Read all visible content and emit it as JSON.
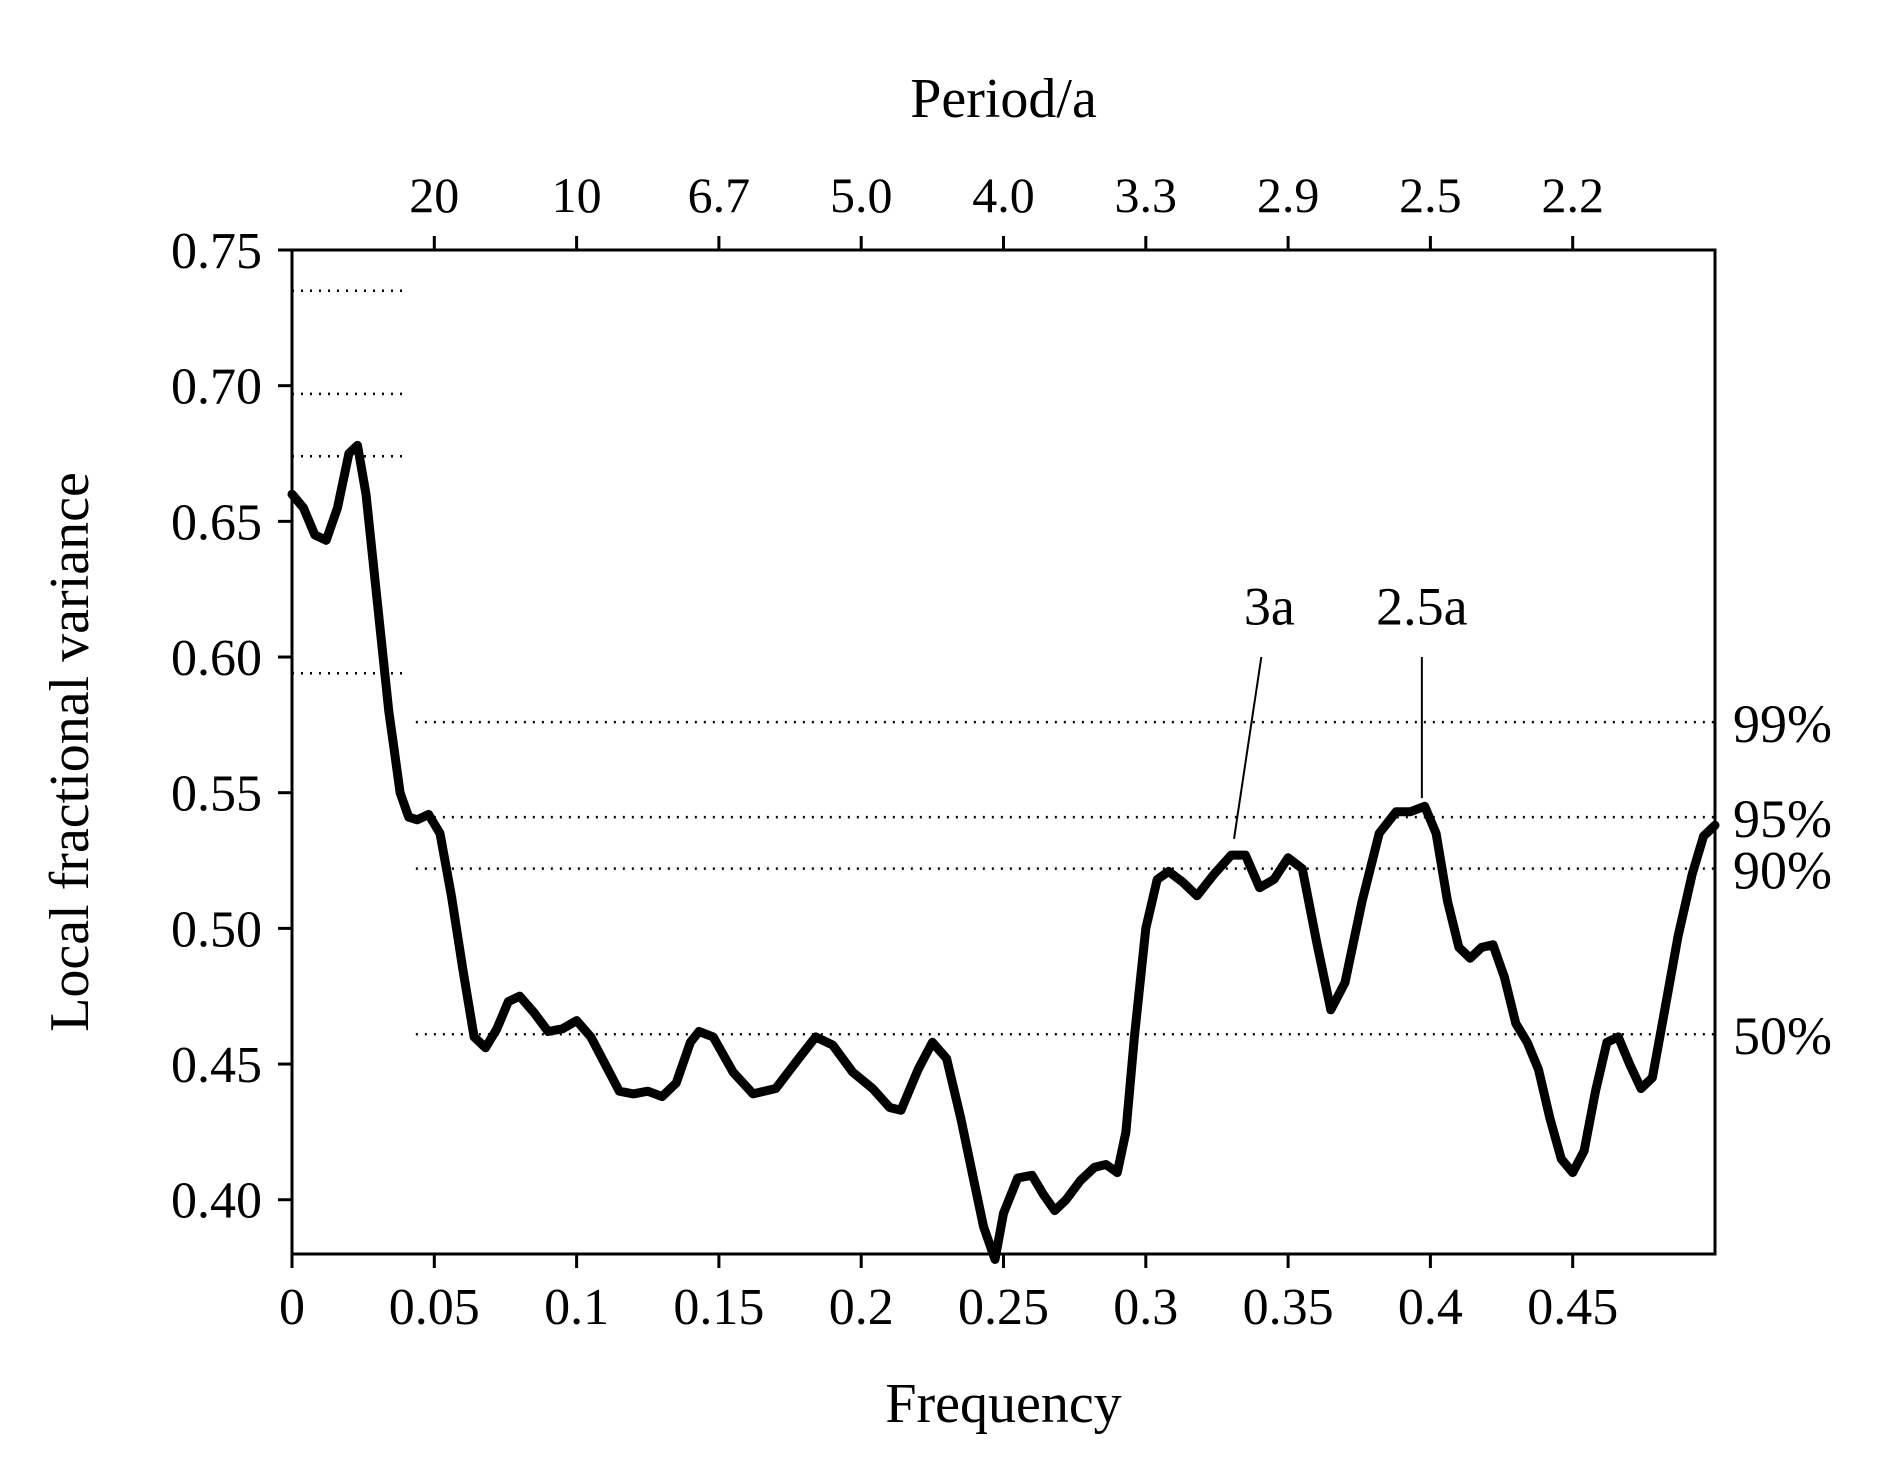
{
  "chart_data": {
    "type": "line",
    "xlabel": "Frequency",
    "ylabel": "Local fractional variance",
    "top_axis_label": "Period/a",
    "xlim": [
      0,
      0.5
    ],
    "ylim": [
      0.38,
      0.75
    ],
    "x_ticks": [
      {
        "value": 0,
        "label": "0"
      },
      {
        "value": 0.05,
        "label": "0.05"
      },
      {
        "value": 0.1,
        "label": "0.1"
      },
      {
        "value": 0.15,
        "label": "0.15"
      },
      {
        "value": 0.2,
        "label": "0.2"
      },
      {
        "value": 0.25,
        "label": "0.25"
      },
      {
        "value": 0.3,
        "label": "0.3"
      },
      {
        "value": 0.35,
        "label": "0.35"
      },
      {
        "value": 0.4,
        "label": "0.4"
      },
      {
        "value": 0.45,
        "label": "0.45"
      }
    ],
    "y_ticks": [
      {
        "value": 0.75,
        "label": "0.75"
      },
      {
        "value": 0.7,
        "label": "0.70"
      },
      {
        "value": 0.65,
        "label": "0.65"
      },
      {
        "value": 0.6,
        "label": "0.60"
      },
      {
        "value": 0.55,
        "label": "0.55"
      },
      {
        "value": 0.5,
        "label": "0.50"
      },
      {
        "value": 0.45,
        "label": "0.45"
      },
      {
        "value": 0.4,
        "label": "0.40"
      }
    ],
    "top_ticks": [
      {
        "frequency": 0.05,
        "label": "20"
      },
      {
        "frequency": 0.1,
        "label": "10"
      },
      {
        "frequency": 0.15,
        "label": "6.7"
      },
      {
        "frequency": 0.2,
        "label": "5.0"
      },
      {
        "frequency": 0.25,
        "label": "4.0"
      },
      {
        "frequency": 0.3,
        "label": "3.3"
      },
      {
        "frequency": 0.35,
        "label": "2.9"
      },
      {
        "frequency": 0.4,
        "label": "2.5"
      },
      {
        "frequency": 0.45,
        "label": "2.2"
      }
    ],
    "significance_levels": [
      {
        "label": "99%",
        "low_freq_value": 0.735,
        "value": 0.576
      },
      {
        "label": "95%",
        "low_freq_value": 0.697,
        "value": 0.541
      },
      {
        "label": "90%",
        "low_freq_value": 0.674,
        "value": 0.522
      },
      {
        "label": "50%",
        "low_freq_value": 0.594,
        "value": 0.461
      }
    ],
    "significance_split_frequency": 0.04,
    "annotations": [
      {
        "label": "3a",
        "frequency": 0.331,
        "value": 0.528
      },
      {
        "label": "2.5a",
        "frequency": 0.397,
        "value": 0.545
      }
    ],
    "series": [
      {
        "x": [
          0,
          0.004,
          0.008,
          0.012,
          0.016,
          0.02,
          0.023,
          0.026,
          0.03,
          0.034,
          0.036,
          0.038,
          0.041,
          0.044,
          0.048,
          0.052,
          0.056,
          0.06,
          0.064,
          0.068,
          0.072,
          0.076,
          0.08,
          0.085,
          0.09,
          0.095,
          0.1,
          0.105,
          0.11,
          0.115,
          0.12,
          0.125,
          0.13,
          0.135,
          0.14,
          0.143,
          0.148,
          0.155,
          0.162,
          0.17,
          0.178,
          0.184,
          0.19,
          0.197,
          0.204,
          0.21,
          0.214,
          0.22,
          0.225,
          0.23,
          0.235,
          0.24,
          0.243,
          0.247,
          0.25,
          0.255,
          0.26,
          0.264,
          0.268,
          0.272,
          0.277,
          0.282,
          0.286,
          0.29,
          0.293,
          0.296,
          0.3,
          0.304,
          0.308,
          0.313,
          0.318,
          0.324,
          0.33,
          0.335,
          0.34,
          0.345,
          0.35,
          0.355,
          0.36,
          0.365,
          0.37,
          0.376,
          0.382,
          0.388,
          0.393,
          0.398,
          0.402,
          0.406,
          0.41,
          0.414,
          0.418,
          0.422,
          0.426,
          0.43,
          0.434,
          0.438,
          0.442,
          0.446,
          0.45,
          0.454,
          0.458,
          0.462,
          0.466,
          0.47,
          0.474,
          0.478,
          0.482,
          0.487,
          0.492,
          0.496,
          0.5
        ],
        "y": [
          0.66,
          0.655,
          0.645,
          0.643,
          0.655,
          0.675,
          0.678,
          0.66,
          0.62,
          0.58,
          0.565,
          0.55,
          0.541,
          0.54,
          0.542,
          0.535,
          0.512,
          0.485,
          0.46,
          0.456,
          0.463,
          0.473,
          0.475,
          0.469,
          0.462,
          0.463,
          0.466,
          0.46,
          0.45,
          0.44,
          0.439,
          0.44,
          0.438,
          0.443,
          0.458,
          0.462,
          0.46,
          0.447,
          0.439,
          0.441,
          0.452,
          0.46,
          0.457,
          0.447,
          0.441,
          0.434,
          0.433,
          0.448,
          0.458,
          0.452,
          0.43,
          0.405,
          0.39,
          0.378,
          0.395,
          0.408,
          0.409,
          0.402,
          0.396,
          0.4,
          0.407,
          0.412,
          0.413,
          0.41,
          0.425,
          0.46,
          0.5,
          0.518,
          0.521,
          0.517,
          0.512,
          0.52,
          0.527,
          0.527,
          0.515,
          0.518,
          0.526,
          0.522,
          0.495,
          0.47,
          0.48,
          0.51,
          0.535,
          0.543,
          0.543,
          0.545,
          0.535,
          0.51,
          0.493,
          0.489,
          0.493,
          0.494,
          0.482,
          0.465,
          0.458,
          0.448,
          0.43,
          0.415,
          0.41,
          0.418,
          0.44,
          0.458,
          0.46,
          0.45,
          0.441,
          0.445,
          0.468,
          0.497,
          0.52,
          0.534,
          0.538
        ]
      }
    ]
  }
}
